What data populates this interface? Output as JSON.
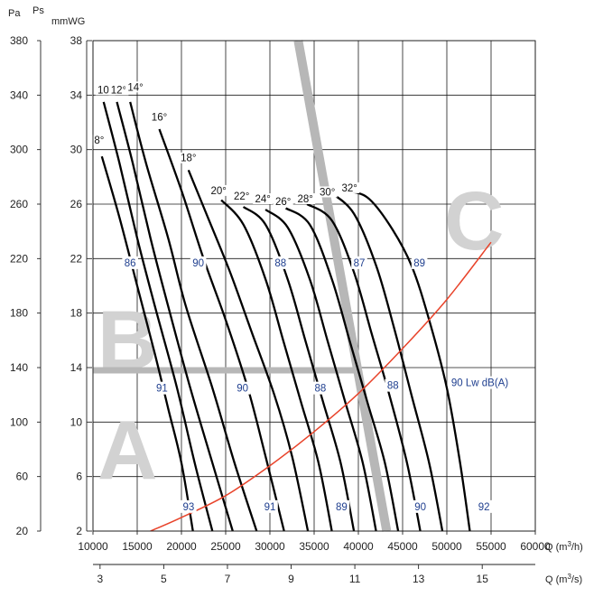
{
  "chart_data": {
    "type": "line",
    "title": "",
    "axes": {
      "left_outer": {
        "label": "Pa",
        "range": [
          20,
          380
        ],
        "ticks": [
          "20",
          "60",
          "100",
          "140",
          "180",
          "220",
          "260",
          "300",
          "340",
          "380"
        ]
      },
      "left_inner": {
        "label": "Ps mmWG",
        "label_top": "Ps",
        "label_bottom": "mmWG",
        "range": [
          2,
          38
        ],
        "ticks": [
          "2",
          "6",
          "10",
          "14",
          "18",
          "22",
          "26",
          "30",
          "34",
          "38"
        ]
      },
      "bottom": {
        "label": "Q (m3/h)",
        "label_main": "Q (m",
        "label_sup": "3",
        "label_end": "/h)",
        "range": [
          10000,
          60000
        ],
        "ticks": [
          "10000",
          "15000",
          "20000",
          "25000",
          "30000",
          "35000",
          "40000",
          "45000",
          "50000",
          "55000",
          "60000"
        ]
      },
      "bottom2": {
        "label": "Q (m3/s)",
        "label_main": "Q (m",
        "label_sup": "3",
        "label_end": "/s)",
        "ticks": [
          {
            "value": 3,
            "label": "3"
          },
          {
            "value": 5,
            "label": "5"
          },
          {
            "value": 7,
            "label": "7"
          },
          {
            "value": 9,
            "label": "9"
          },
          {
            "value": 11,
            "label": "11"
          },
          {
            "value": 13,
            "label": "13"
          },
          {
            "value": 15,
            "label": "15"
          }
        ]
      }
    },
    "grid": true,
    "zones": [
      "A",
      "B",
      "C"
    ],
    "series": [
      {
        "name": "8°",
        "label_at": [
          10700,
          30.5
        ],
        "points": [
          [
            11000,
            29.5
          ],
          [
            13000,
            25
          ],
          [
            15000,
            20
          ],
          [
            17000,
            15
          ],
          [
            18500,
            11
          ],
          [
            20000,
            7
          ],
          [
            21300,
            2
          ]
        ]
      },
      {
        "name": "10°",
        "label_at": [
          11400,
          34.2
        ],
        "points": [
          [
            11200,
            33.5
          ],
          [
            13000,
            29
          ],
          [
            15000,
            23.5
          ],
          [
            17000,
            18.5
          ],
          [
            19500,
            12.5
          ],
          [
            21500,
            7
          ],
          [
            23500,
            2
          ]
        ]
      },
      {
        "name": "12°",
        "label_at": [
          12900,
          34.2
        ],
        "points": [
          [
            12700,
            33.5
          ],
          [
            14500,
            29
          ],
          [
            16500,
            23.5
          ],
          [
            18500,
            18.5
          ],
          [
            21000,
            12.5
          ],
          [
            23500,
            7
          ],
          [
            25800,
            2
          ]
        ]
      },
      {
        "name": "14°",
        "label_at": [
          14800,
          34.4
        ],
        "points": [
          [
            14200,
            33.5
          ],
          [
            16000,
            29
          ],
          [
            18500,
            23.5
          ],
          [
            20500,
            18.5
          ],
          [
            23500,
            12.5
          ],
          [
            26000,
            7
          ],
          [
            28500,
            2
          ]
        ]
      },
      {
        "name": "16°",
        "label_at": [
          17500,
          32.2
        ],
        "points": [
          [
            17500,
            31.5
          ],
          [
            20000,
            27
          ],
          [
            22500,
            22
          ],
          [
            25000,
            17.5
          ],
          [
            27500,
            12.5
          ],
          [
            29500,
            7.5
          ],
          [
            31600,
            2
          ]
        ]
      },
      {
        "name": "18°",
        "label_at": [
          20800,
          29.2
        ],
        "points": [
          [
            20800,
            28.5
          ],
          [
            23000,
            25
          ],
          [
            25500,
            21
          ],
          [
            28000,
            16.5
          ],
          [
            30500,
            12
          ],
          [
            32500,
            7.5
          ],
          [
            34300,
            2
          ]
        ]
      },
      {
        "name": "20°",
        "label_at": [
          24200,
          26.8
        ],
        "points": [
          [
            24500,
            26.3
          ],
          [
            27000,
            24.5
          ],
          [
            29500,
            20.5
          ],
          [
            31500,
            16
          ],
          [
            33500,
            11.5
          ],
          [
            35500,
            7
          ],
          [
            37000,
            2
          ]
        ]
      },
      {
        "name": "22°",
        "label_at": [
          26800,
          26.4
        ],
        "points": [
          [
            27000,
            25.8
          ],
          [
            29500,
            24.5
          ],
          [
            32000,
            20.5
          ],
          [
            34000,
            16
          ],
          [
            36000,
            11.5
          ],
          [
            38000,
            7
          ],
          [
            39500,
            2
          ]
        ]
      },
      {
        "name": "24°",
        "label_at": [
          29200,
          26.2
        ],
        "points": [
          [
            29500,
            25.6
          ],
          [
            32000,
            24.3
          ],
          [
            34500,
            20.5
          ],
          [
            36500,
            16
          ],
          [
            38500,
            11.5
          ],
          [
            40500,
            7
          ],
          [
            42000,
            2
          ]
        ]
      },
      {
        "name": "26°",
        "label_at": [
          31500,
          26.0
        ],
        "points": [
          [
            31800,
            25.7
          ],
          [
            34500,
            24.5
          ],
          [
            37000,
            20.5
          ],
          [
            39000,
            16
          ],
          [
            41000,
            11.5
          ],
          [
            43000,
            7
          ],
          [
            44500,
            2
          ]
        ]
      },
      {
        "name": "28°",
        "label_at": [
          34000,
          26.2
        ],
        "points": [
          [
            34200,
            26
          ],
          [
            37000,
            24.8
          ],
          [
            39500,
            21
          ],
          [
            41500,
            16.5
          ],
          [
            43500,
            12
          ],
          [
            45500,
            7
          ],
          [
            47000,
            2
          ]
        ]
      },
      {
        "name": "30°",
        "label_at": [
          36500,
          26.7
        ],
        "points": [
          [
            37000,
            26.8
          ],
          [
            39500,
            25.3
          ],
          [
            42000,
            21.5
          ],
          [
            44000,
            17
          ],
          [
            46000,
            12
          ],
          [
            48000,
            7
          ],
          [
            49500,
            2
          ]
        ]
      },
      {
        "name": "32°",
        "label_at": [
          39000,
          27.0
        ],
        "points": [
          [
            38500,
            27
          ],
          [
            41000,
            26.5
          ],
          [
            43500,
            24.5
          ],
          [
            46000,
            21.5
          ],
          [
            48000,
            17.5
          ],
          [
            50000,
            12.5
          ],
          [
            51500,
            7
          ],
          [
            52600,
            2
          ]
        ]
      }
    ],
    "system_curve": {
      "color": "#e8432a",
      "points": [
        [
          16500,
          2
        ],
        [
          20000,
          3
        ],
        [
          25000,
          4.6
        ],
        [
          30000,
          6.8
        ],
        [
          35000,
          9.3
        ],
        [
          40000,
          12.1
        ],
        [
          45000,
          15.4
        ],
        [
          50000,
          19
        ],
        [
          55000,
          23.2
        ]
      ]
    },
    "noise_labels": [
      {
        "text": "86",
        "x": 14200,
        "y": 21.5
      },
      {
        "text": "90",
        "x": 21900,
        "y": 21.5
      },
      {
        "text": "88",
        "x": 31200,
        "y": 21.5
      },
      {
        "text": "87",
        "x": 40100,
        "y": 21.5
      },
      {
        "text": "89",
        "x": 46900,
        "y": 21.5
      },
      {
        "text": "91",
        "x": 17800,
        "y": 12.3
      },
      {
        "text": "90",
        "x": 26900,
        "y": 12.3
      },
      {
        "text": "88",
        "x": 35700,
        "y": 12.3
      },
      {
        "text": "88",
        "x": 43900,
        "y": 12.5
      },
      {
        "text": "90 Lw dB(A)",
        "x": 50500,
        "y": 12.7
      },
      {
        "text": "93",
        "x": 20800,
        "y": 3.6
      },
      {
        "text": "91",
        "x": 30000,
        "y": 3.6
      },
      {
        "text": "89",
        "x": 38100,
        "y": 3.6
      },
      {
        "text": "90",
        "x": 47000,
        "y": 3.6
      },
      {
        "text": "92",
        "x": 54200,
        "y": 3.6
      }
    ],
    "zone_divider_horizontal": {
      "y": 13.8,
      "x_start": 10000,
      "x_end": 39500
    },
    "zone_divider_diagonal": {
      "points": [
        [
          33200,
          38
        ],
        [
          43200,
          2
        ]
      ]
    }
  }
}
